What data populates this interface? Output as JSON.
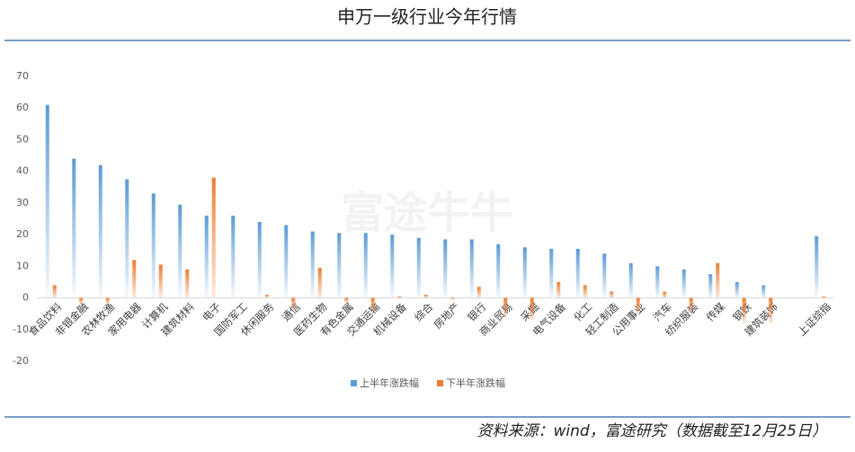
{
  "chart_data": {
    "type": "bar",
    "title": "申万一级行业今年行情",
    "source": "资料来源：wind，富途研究（数据截至12月25日）",
    "watermark": "富途牛牛",
    "categories": [
      "食品饮料",
      "非银金融",
      "农林牧渔",
      "家用电器",
      "计算机",
      "建筑材料",
      "电子",
      "国防军工",
      "休闲服务",
      "通信",
      "医药生物",
      "有色金属",
      "交通运输",
      "机械设备",
      "综合",
      "房地产",
      "银行",
      "商业贸易",
      "采掘",
      "电气设备",
      "化工",
      "轻工制造",
      "公用事业",
      "汽车",
      "纺织服装",
      "传媒",
      "钢铁",
      "建筑装饰",
      null,
      "上证综指"
    ],
    "series": [
      {
        "name": "上半年涨跌幅",
        "color": "#5b9bd5",
        "values": [
          61,
          44,
          42,
          37.5,
          33,
          29.5,
          26,
          26,
          24,
          23,
          21,
          20.5,
          20.5,
          20,
          19,
          18.5,
          18.5,
          17,
          16,
          15.5,
          15.5,
          14,
          11,
          10,
          9,
          7.5,
          5,
          4,
          null,
          19.5
        ]
      },
      {
        "name": "下半年涨跌幅",
        "color": "#ed7d31",
        "values": [
          4,
          -2,
          -2,
          12,
          10.5,
          9,
          38,
          0,
          1,
          -3.5,
          9.5,
          -1.5,
          -4.5,
          0.5,
          1,
          -0.5,
          3.5,
          -6,
          -7,
          5,
          4,
          2,
          -5,
          2,
          -4.5,
          11,
          -8,
          -8,
          null,
          0.5
        ]
      }
    ],
    "ylim": [
      -20,
      70
    ],
    "yticks": [
      70,
      60,
      50,
      40,
      30,
      20,
      10,
      0,
      -10,
      -20
    ],
    "grid": false,
    "legend": "bottom"
  }
}
